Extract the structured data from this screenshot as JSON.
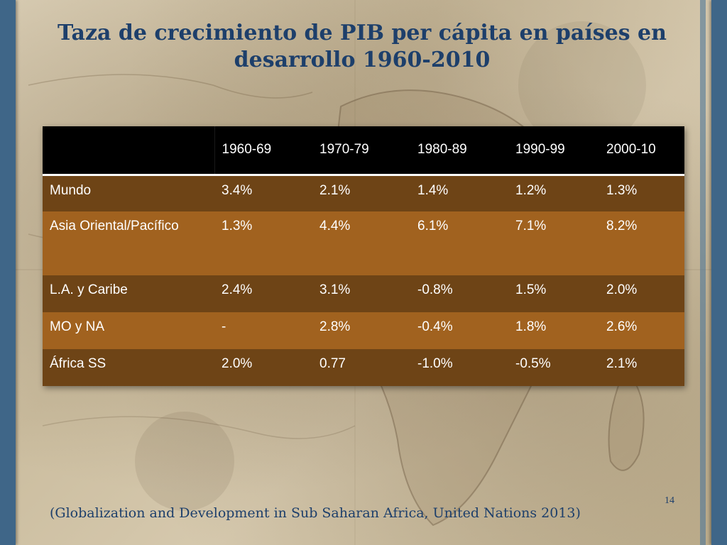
{
  "slide": {
    "title": "Taza de crecimiento de PIB per cápita en países en desarrollo 1960-2010",
    "page_number": "14",
    "citation": "(Globalization and Development in Sub Saharan Africa, United Nations 2013)"
  },
  "table": {
    "columns": [
      "",
      "1960-69",
      "1970-79",
      "1980-89",
      "1990-99",
      "2000-10"
    ],
    "rows": [
      {
        "region": "Mundo",
        "values": [
          "3.4%",
          "2.1%",
          "1.4%",
          "1.2%",
          "1.3%"
        ]
      },
      {
        "region": "Asia Oriental/Pacífico",
        "values": [
          "1.3%",
          "4.4%",
          "6.1%",
          "7.1%",
          "8.2%"
        ]
      },
      {
        "region": "L.A. y Caribe",
        "values": [
          "2.4%",
          "3.1%",
          "-0.8%",
          "1.5%",
          "2.0%"
        ]
      },
      {
        "region": "MO y NA",
        "values": [
          "-",
          "2.8%",
          "-0.4%",
          "1.8%",
          "2.6%"
        ]
      },
      {
        "region": "África SS",
        "values": [
          "2.0%",
          "0.77",
          "-1.0%",
          "-0.5%",
          "2.1%"
        ]
      }
    ]
  },
  "colors": {
    "title": "#1d3f6b",
    "frame": "#3f6688",
    "header_bg": "#000000",
    "row_dark": "#6e4416",
    "row_light": "#a1621f"
  }
}
